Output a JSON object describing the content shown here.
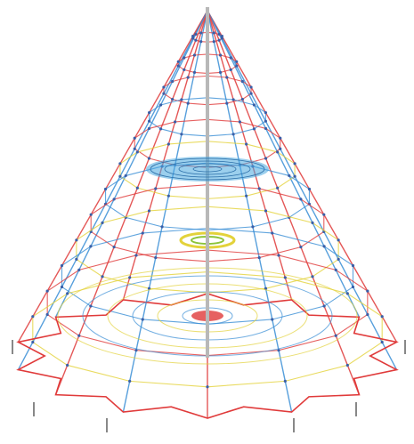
{
  "image": {
    "subject": "rope-net-pyramid-climbing-frame",
    "background_color": "#ffffff",
    "colors": {
      "red_rope": "#e03a3a",
      "blue_rope": "#3a8fd6",
      "yellow_rope": "#e3d23a",
      "green_rope": "#8cc43a",
      "mast": "#b8b8b8",
      "platform": "#4aa8e0",
      "node": "#3a5fa8"
    }
  }
}
